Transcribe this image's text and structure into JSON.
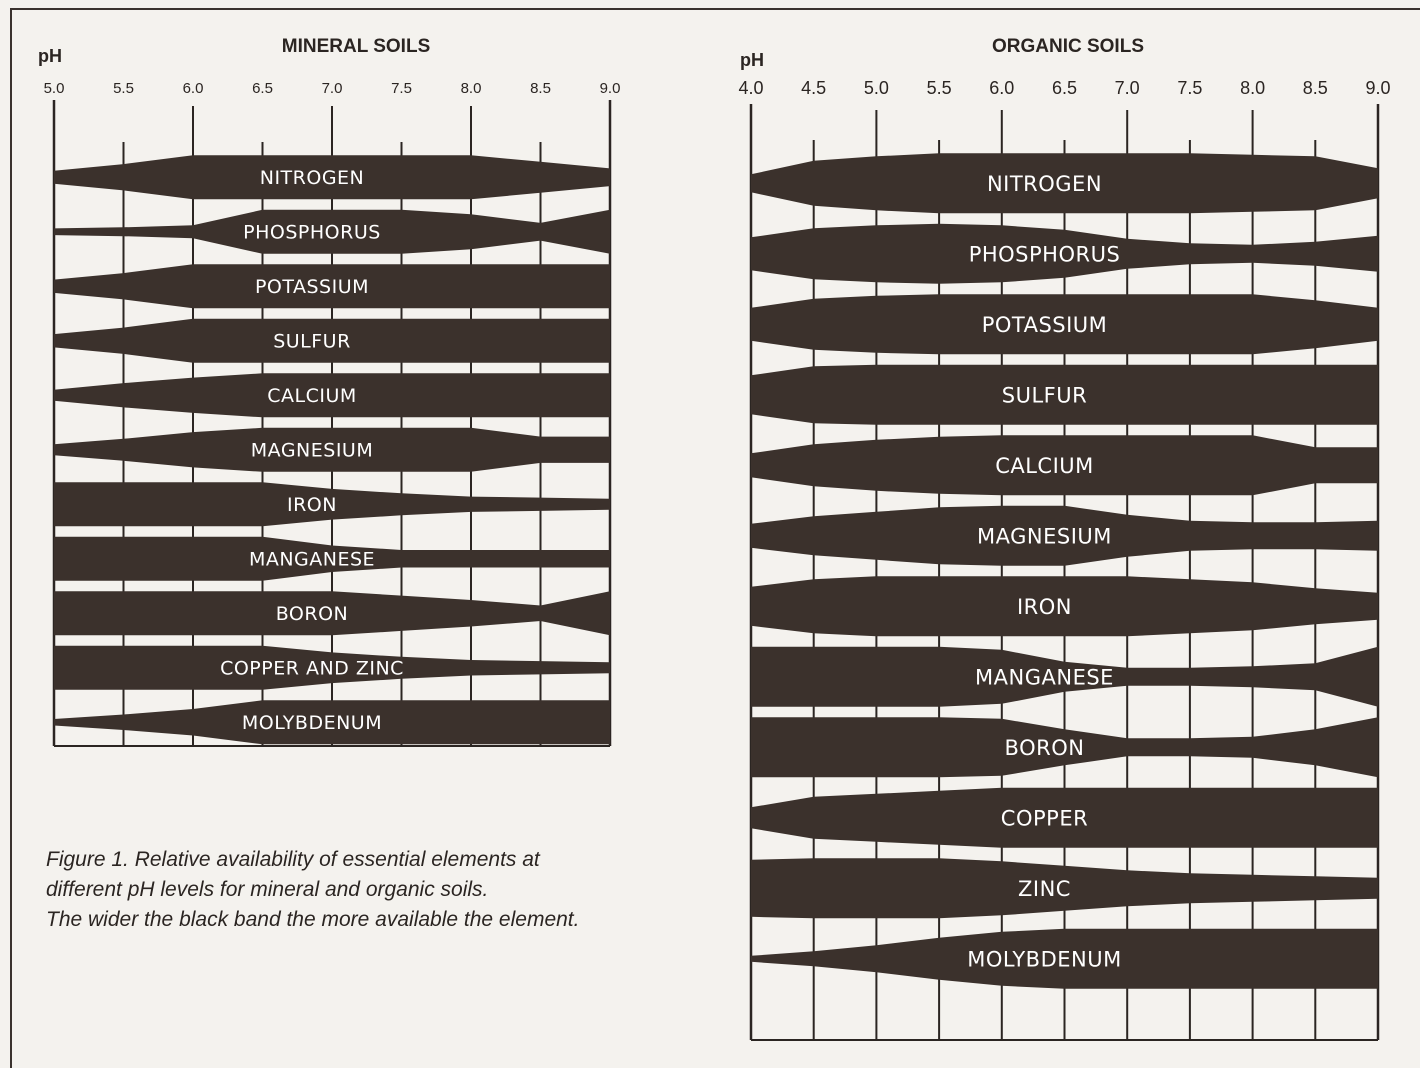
{
  "panels": [
    {
      "id": "mineral",
      "title": "MINERAL SOILS",
      "axis_label": "pH",
      "ticks": [
        "5.0",
        "5.5",
        "6.0",
        "6.5",
        "7.0",
        "7.5",
        "8.0",
        "8.5",
        "9.0"
      ],
      "ph_min": 5.0,
      "ph_max": 9.0,
      "bands": [
        {
          "label": "NITROGEN",
          "widths": [
            0.3,
            0.6,
            1.0,
            1.0,
            1.0,
            1.0,
            1.0,
            0.7,
            0.4
          ]
        },
        {
          "label": "PHOSPHORUS",
          "widths": [
            0.15,
            0.2,
            0.3,
            1.0,
            1.0,
            1.0,
            0.8,
            0.4,
            1.0
          ]
        },
        {
          "label": "POTASSIUM",
          "widths": [
            0.3,
            0.6,
            1.0,
            1.0,
            1.0,
            1.0,
            1.0,
            1.0,
            1.0
          ]
        },
        {
          "label": "SULFUR",
          "widths": [
            0.3,
            0.6,
            1.0,
            1.0,
            1.0,
            1.0,
            1.0,
            1.0,
            1.0
          ]
        },
        {
          "label": "CALCIUM",
          "widths": [
            0.25,
            0.55,
            0.8,
            1.0,
            1.0,
            1.0,
            1.0,
            1.0,
            1.0
          ]
        },
        {
          "label": "MAGNESIUM",
          "widths": [
            0.25,
            0.5,
            0.8,
            1.0,
            1.0,
            1.0,
            1.0,
            0.6,
            0.6
          ]
        },
        {
          "label": "IRON",
          "widths": [
            1.0,
            1.0,
            1.0,
            1.0,
            0.7,
            0.5,
            0.35,
            0.3,
            0.25
          ]
        },
        {
          "label": "MANGANESE",
          "widths": [
            1.0,
            1.0,
            1.0,
            1.0,
            0.6,
            0.4,
            0.4,
            0.4,
            0.4
          ]
        },
        {
          "label": "BORON",
          "widths": [
            1.0,
            1.0,
            1.0,
            1.0,
            1.0,
            0.8,
            0.6,
            0.35,
            1.0
          ]
        },
        {
          "label": "COPPER AND ZINC",
          "widths": [
            1.0,
            1.0,
            1.0,
            1.0,
            0.7,
            0.5,
            0.35,
            0.3,
            0.25
          ]
        },
        {
          "label": "MOLYBDENUM",
          "widths": [
            0.15,
            0.35,
            0.6,
            1.0,
            1.0,
            1.0,
            1.0,
            1.0,
            1.0
          ]
        }
      ]
    },
    {
      "id": "organic",
      "title": "ORGANIC SOILS",
      "axis_label": "pH",
      "ticks": [
        "4.0",
        "4.5",
        "5.0",
        "5.5",
        "6.0",
        "6.5",
        "7.0",
        "7.5",
        "8.0",
        "8.5",
        "9.0"
      ],
      "ph_min": 4.0,
      "ph_max": 9.0,
      "bands": [
        {
          "label": "NITROGEN",
          "widths": [
            0.3,
            0.75,
            0.9,
            1.0,
            1.0,
            1.0,
            1.0,
            1.0,
            0.95,
            0.9,
            0.5
          ]
        },
        {
          "label": "PHOSPHORUS",
          "widths": [
            0.55,
            0.85,
            0.95,
            1.0,
            0.95,
            0.8,
            0.5,
            0.35,
            0.3,
            0.4,
            0.6
          ]
        },
        {
          "label": "POTASSIUM",
          "widths": [
            0.55,
            0.85,
            0.95,
            1.0,
            1.0,
            1.0,
            1.0,
            1.0,
            1.0,
            0.8,
            0.55
          ]
        },
        {
          "label": "SULFUR",
          "widths": [
            0.65,
            0.95,
            1.0,
            1.0,
            1.0,
            1.0,
            1.0,
            1.0,
            1.0,
            1.0,
            1.0
          ]
        },
        {
          "label": "CALCIUM",
          "widths": [
            0.4,
            0.7,
            0.85,
            0.95,
            1.0,
            1.0,
            1.0,
            1.0,
            1.0,
            0.6,
            0.6
          ]
        },
        {
          "label": "MAGNESIUM",
          "widths": [
            0.4,
            0.65,
            0.8,
            0.95,
            1.0,
            1.0,
            0.7,
            0.5,
            0.45,
            0.45,
            0.5
          ]
        },
        {
          "label": "IRON",
          "widths": [
            0.65,
            0.9,
            1.0,
            1.0,
            1.0,
            1.0,
            1.0,
            0.9,
            0.8,
            0.6,
            0.45
          ]
        },
        {
          "label": "MANGANESE",
          "widths": [
            1.0,
            1.0,
            1.0,
            1.0,
            0.9,
            0.5,
            0.3,
            0.3,
            0.35,
            0.45,
            1.0
          ]
        },
        {
          "label": "BORON",
          "widths": [
            1.0,
            1.0,
            1.0,
            1.0,
            0.95,
            0.6,
            0.3,
            0.3,
            0.35,
            0.6,
            1.0
          ]
        },
        {
          "label": "COPPER",
          "widths": [
            0.35,
            0.7,
            0.8,
            0.9,
            1.0,
            1.0,
            1.0,
            1.0,
            1.0,
            1.0,
            1.0
          ]
        },
        {
          "label": "ZINC",
          "widths": [
            0.95,
            1.0,
            1.0,
            1.0,
            0.9,
            0.75,
            0.6,
            0.5,
            0.45,
            0.4,
            0.35
          ]
        },
        {
          "label": "MOLYBDENUM",
          "widths": [
            0.1,
            0.25,
            0.45,
            0.7,
            0.9,
            1.0,
            1.0,
            1.0,
            1.0,
            1.0,
            1.0
          ]
        }
      ]
    }
  ],
  "caption": {
    "line1": "Figure 1. Relative availability of essential elements at",
    "line2": "different pH levels for mineral and organic soils.",
    "line3": "The wider the black band the more available the element."
  },
  "colors": {
    "band": "#3b312c",
    "ink": "#2b2522",
    "paper": "#f4f2ee",
    "band_text": "#ffffff"
  }
}
